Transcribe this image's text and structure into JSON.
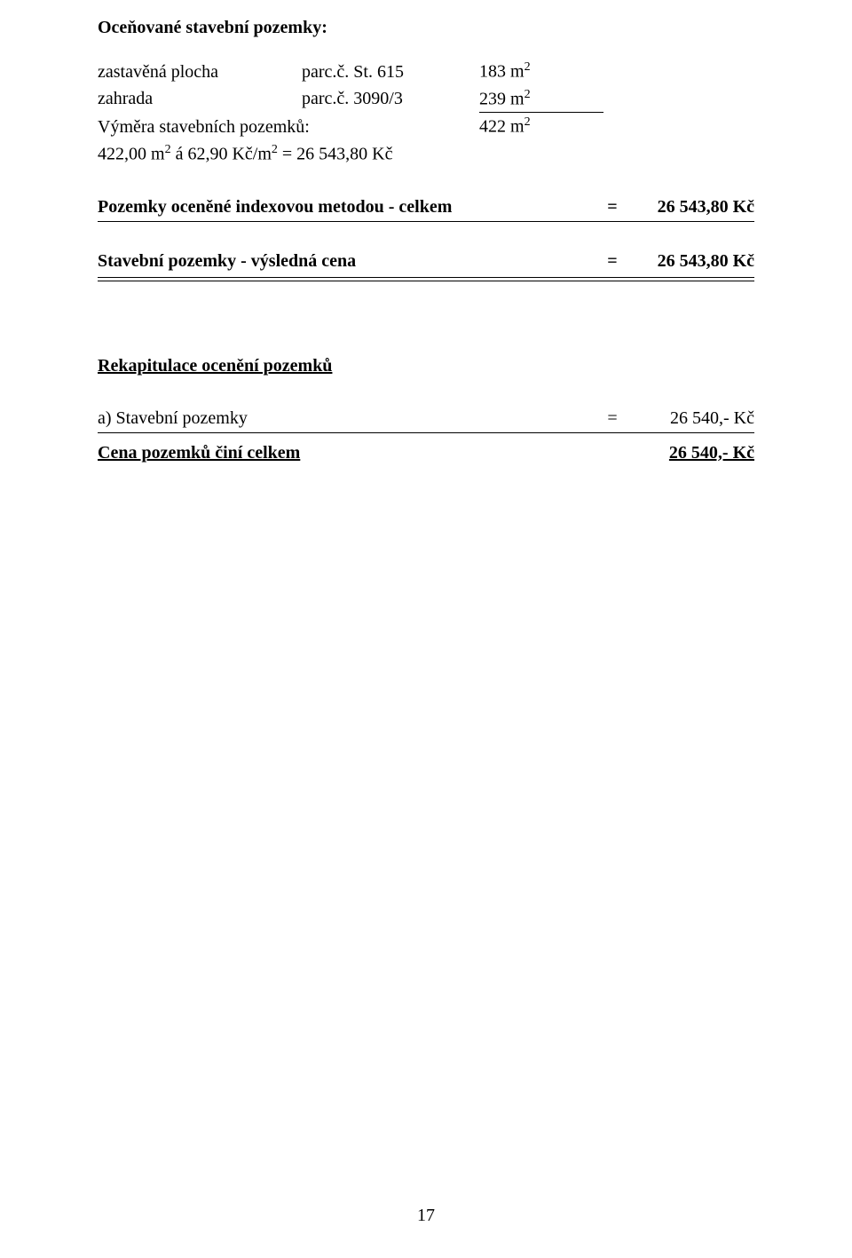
{
  "page_number": "17",
  "title": "Oceňované stavební pozemky:",
  "plots": {
    "row1": {
      "label": "zastavěná plocha",
      "parc": "parc.č. St. 615",
      "value_num": "183",
      "unit_html": "m"
    },
    "row2": {
      "label": "zahrada",
      "parc": "parc.č. 3090/3",
      "value_num": "239",
      "unit_html": "m"
    }
  },
  "sum": {
    "label": "Výměra stavebních pozemků:",
    "value_num": "422",
    "calc": "422,00 m² á 62,90 Kč/m² = 26 543,80 Kč"
  },
  "indexed": {
    "label": "Pozemky oceněné indexovou metodou - celkem",
    "eq": "=",
    "value": "26 543,80 Kč"
  },
  "result": {
    "label": "Stavební pozemky - výsledná cena",
    "eq": "=",
    "value": "26 543,80 Kč"
  },
  "recap_heading": "Rekapitulace ocenění pozemků",
  "recap_a": {
    "label": "a) Stavební pozemky",
    "eq": "=",
    "value": "26 540,- Kč"
  },
  "recap_total": {
    "label": "Cena pozemků činí celkem",
    "value": "26 540,- Kč"
  }
}
